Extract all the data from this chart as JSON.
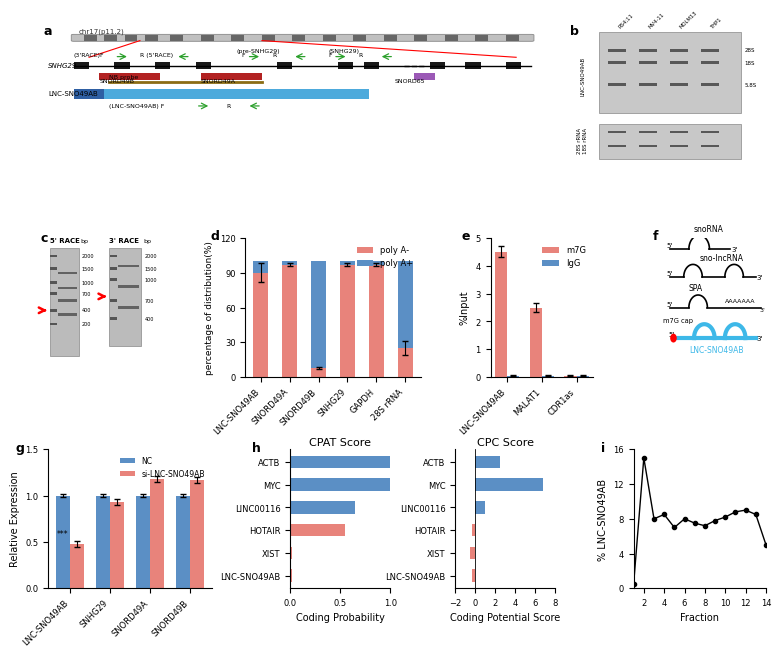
{
  "panel_d": {
    "categories": [
      "LNC-SNO49AB",
      "SNORD49A",
      "SNORD49B",
      "SNHG29",
      "GAPDH",
      "28S rRNA"
    ],
    "poly_A_minus": [
      90,
      97,
      8,
      97,
      97,
      25
    ],
    "poly_A_plus": [
      10,
      3,
      92,
      3,
      3,
      75
    ],
    "poly_A_minus_err": [
      8,
      1,
      1,
      1,
      1,
      6
    ],
    "color_minus": "#E8837B",
    "color_plus": "#5B8FC5",
    "ylabel": "percentage of distribution(%)",
    "ylim": [
      0,
      120
    ],
    "yticks": [
      0,
      30,
      60,
      90,
      120
    ],
    "legend_minus": "poly A-",
    "legend_plus": "poly A+"
  },
  "panel_e": {
    "categories": [
      "LNC-SNO49AB",
      "MALAT1",
      "CDR1as"
    ],
    "m7G_vals": [
      4.5,
      2.5,
      0.05
    ],
    "m7G_err": [
      0.2,
      0.15,
      0.02
    ],
    "IgG_vals": [
      0.05,
      0.05,
      0.05
    ],
    "IgG_err": [
      0.02,
      0.02,
      0.02
    ],
    "color_m7G": "#E8837B",
    "color_IgG": "#5B8FC5",
    "ylabel": "%Input",
    "ylim": [
      0,
      5
    ],
    "yticks": [
      0,
      1,
      2,
      3,
      4,
      5
    ],
    "legend_m7G": "m7G",
    "legend_IgG": "IgG"
  },
  "panel_g": {
    "categories": [
      "LNC-SNO49AB",
      "SNHG29",
      "SNORD49A",
      "SNORD49B"
    ],
    "NC_vals": [
      1.0,
      1.0,
      1.0,
      1.0
    ],
    "NC_err": [
      0.02,
      0.02,
      0.02,
      0.02
    ],
    "si_vals": [
      0.48,
      0.93,
      1.18,
      1.17
    ],
    "si_err": [
      0.03,
      0.03,
      0.03,
      0.03
    ],
    "color_NC": "#5B8FC5",
    "color_si": "#E8837B",
    "ylabel": "Relative Expression",
    "ylim": [
      0,
      1.5
    ],
    "yticks": [
      0.0,
      0.5,
      1.0,
      1.5
    ],
    "legend_NC": "NC",
    "legend_si": "si-LNC-SNO49AB",
    "sig_label": "***"
  },
  "panel_h_cpat": {
    "categories": [
      "LNC-SNO49AB",
      "XIST",
      "HOTAIR",
      "LINC00116",
      "MYC",
      "ACTB"
    ],
    "values": [
      0.02,
      0.02,
      0.55,
      0.65,
      1.0,
      1.0
    ],
    "colors": [
      "#E8837B",
      "#E8837B",
      "#E8837B",
      "#5B8FC5",
      "#5B8FC5",
      "#5B8FC5"
    ],
    "xlabel": "Coding Probability",
    "title": "CPAT Score",
    "xlim": [
      0,
      1.0
    ],
    "xticks": [
      0,
      0.5,
      1.0
    ]
  },
  "panel_h_cpc": {
    "categories": [
      "LNC-SNO49AB",
      "XIST",
      "HOTAIR",
      "LINC00116",
      "MYC",
      "ACTB"
    ],
    "values": [
      -0.3,
      -0.5,
      -0.3,
      1.0,
      6.8,
      2.5
    ],
    "colors": [
      "#E8837B",
      "#E8837B",
      "#E8837B",
      "#5B8FC5",
      "#5B8FC5",
      "#5B8FC5"
    ],
    "xlabel": "Coding Potential Score",
    "title": "CPC Score",
    "xlim": [
      -2,
      8
    ],
    "xticks": [
      -2,
      0,
      2,
      4,
      6,
      8
    ]
  },
  "panel_i": {
    "x": [
      1,
      2,
      3,
      4,
      5,
      6,
      7,
      8,
      9,
      10,
      11,
      12,
      13,
      14
    ],
    "y": [
      0.5,
      15.0,
      8.0,
      8.5,
      7.0,
      8.0,
      7.5,
      7.2,
      7.8,
      8.2,
      8.8,
      9.0,
      8.5,
      5.0
    ],
    "xlabel": "Fraction",
    "ylabel": "% LNC-SNO49AB",
    "ylim": [
      0,
      16
    ],
    "yticks": [
      0,
      4,
      8,
      12,
      16
    ],
    "xticks": [
      2,
      4,
      6,
      8,
      10,
      12,
      14
    ]
  },
  "bg_color": "#FFFFFF",
  "panel_label_fontsize": 9,
  "axis_fontsize": 7,
  "tick_fontsize": 6
}
